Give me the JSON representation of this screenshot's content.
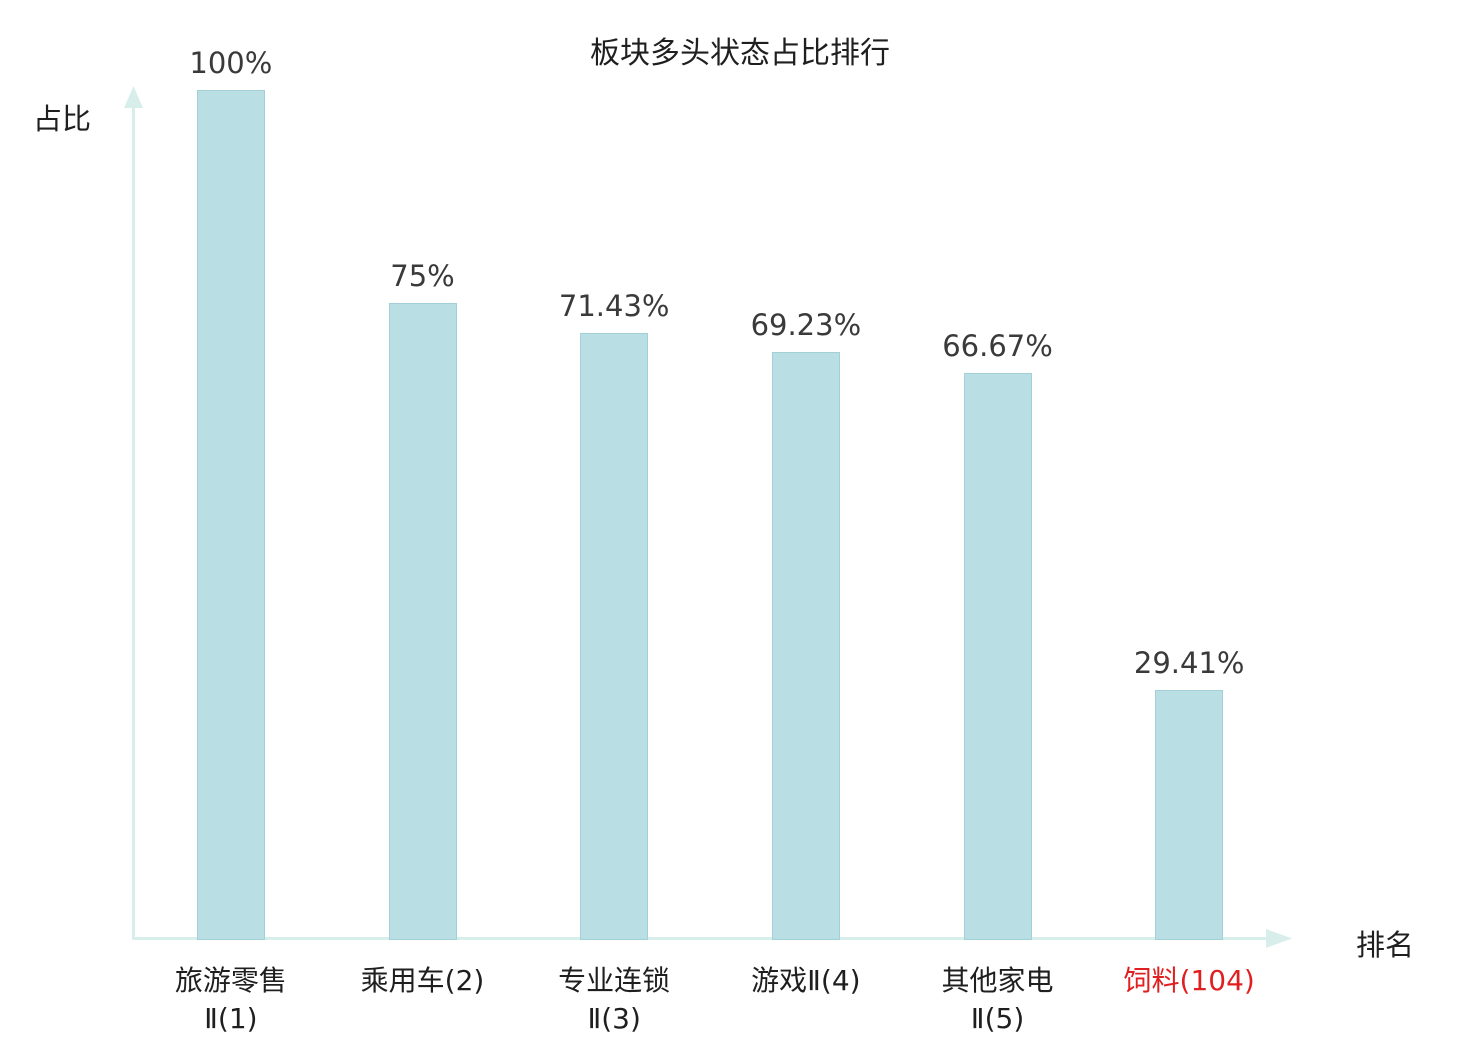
{
  "chart_data": {
    "type": "bar",
    "title": "板块多头状态占比排行",
    "xlabel": "排名",
    "ylabel": "占比",
    "categories": [
      "旅游零售Ⅱ(1)",
      "乘用车(2)",
      "专业连锁Ⅱ(3)",
      "游戏Ⅱ(4)",
      "其他家电Ⅱ(5)",
      "饲料(104)"
    ],
    "category_lines": [
      [
        "旅游零售",
        "Ⅱ(1)"
      ],
      [
        "乘用车(2)"
      ],
      [
        "专业连锁",
        "Ⅱ(3)"
      ],
      [
        "游戏Ⅱ(4)"
      ],
      [
        "其他家电",
        "Ⅱ(5)"
      ],
      [
        "饲料(104)"
      ]
    ],
    "values": [
      100,
      75,
      71.43,
      69.23,
      66.67,
      29.41
    ],
    "value_labels": [
      "100%",
      "75%",
      "71.43%",
      "69.23%",
      "66.67%",
      "29.41%"
    ],
    "ylim": [
      0,
      100
    ],
    "highlight_index": 5,
    "highlight_color": "#e02020",
    "bar_color": "#b9dee3",
    "bar_border_color": "#a3cfd6",
    "axis_color": "#d8eeea",
    "grid": "off",
    "legend": "none"
  }
}
